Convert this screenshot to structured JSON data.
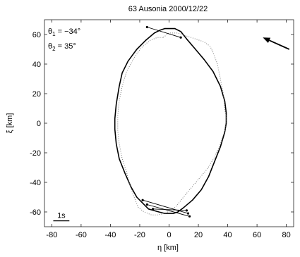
{
  "chart_data": {
    "type": "line",
    "title": "63 Ausonia   2000/12/22",
    "xlabel": "η [km]",
    "ylabel": "ξ [km]",
    "xlim": [
      -85,
      85
    ],
    "ylim": [
      -70,
      70
    ],
    "x_ticks": [
      -80,
      -60,
      -40,
      -20,
      0,
      20,
      40,
      60,
      80
    ],
    "y_ticks": [
      -60,
      -40,
      -20,
      0,
      20,
      40,
      60
    ],
    "grid": false,
    "angles": {
      "theta1": {
        "symbol": "θ",
        "sub": "1",
        "value": " = −34°"
      },
      "theta2": {
        "symbol": "θ",
        "sub": "2",
        "value": " = 35°"
      }
    },
    "scale_bar": {
      "label": "1s",
      "x_start": -79,
      "x_end": -68,
      "y": -66
    },
    "arrow": {
      "from": [
        82,
        50
      ],
      "to": [
        64,
        58
      ]
    },
    "series": [
      {
        "style": "solid",
        "points": [
          [
            0,
            64
          ],
          [
            4,
            64
          ],
          [
            8,
            62
          ],
          [
            12,
            57
          ],
          [
            18,
            50
          ],
          [
            24,
            43
          ],
          [
            30,
            35
          ],
          [
            35,
            25
          ],
          [
            38,
            15
          ],
          [
            39,
            7
          ],
          [
            39,
            0
          ],
          [
            38,
            -6
          ],
          [
            35,
            -16
          ],
          [
            31,
            -26
          ],
          [
            27,
            -36
          ],
          [
            22,
            -45
          ],
          [
            16,
            -52
          ],
          [
            10,
            -57
          ],
          [
            6,
            -60
          ],
          [
            3,
            -61
          ],
          [
            0,
            -61
          ],
          [
            -3,
            -61
          ],
          [
            -7,
            -60
          ],
          [
            -14,
            -58
          ],
          [
            -18,
            -54
          ],
          [
            -22,
            -50
          ],
          [
            -26,
            -43
          ],
          [
            -30,
            -34
          ],
          [
            -34,
            -24
          ],
          [
            -36,
            -14
          ],
          [
            -37,
            -4
          ],
          [
            -37,
            3
          ],
          [
            -36,
            13
          ],
          [
            -34,
            25
          ],
          [
            -32,
            34
          ],
          [
            -28,
            42
          ],
          [
            -22,
            50
          ],
          [
            -16,
            56
          ],
          [
            -10,
            61
          ],
          [
            -6,
            63
          ],
          [
            -3,
            64
          ],
          [
            0,
            64
          ]
        ]
      },
      {
        "style": "dotted",
        "points": [
          [
            -4,
            58
          ],
          [
            0,
            61
          ],
          [
            6,
            61
          ],
          [
            12,
            59
          ],
          [
            18,
            57
          ],
          [
            24,
            55
          ],
          [
            28,
            52
          ],
          [
            30,
            48
          ],
          [
            33,
            40
          ],
          [
            35,
            30
          ],
          [
            37,
            20
          ],
          [
            38,
            10
          ],
          [
            39,
            3
          ],
          [
            38,
            -5
          ],
          [
            35,
            -14
          ],
          [
            31,
            -23
          ],
          [
            26,
            -31
          ],
          [
            20,
            -38
          ],
          [
            14,
            -45
          ],
          [
            9,
            -51
          ],
          [
            5,
            -56
          ],
          [
            1,
            -59
          ],
          [
            -3,
            -61
          ],
          [
            -8,
            -62
          ],
          [
            -12,
            -62
          ],
          [
            -17,
            -60
          ],
          [
            -21,
            -57
          ],
          [
            -23,
            -52
          ],
          [
            -25,
            -47
          ],
          [
            -27,
            -41
          ],
          [
            -29,
            -33
          ],
          [
            -32,
            -24
          ],
          [
            -34,
            -14
          ],
          [
            -35,
            -5
          ],
          [
            -35,
            5
          ],
          [
            -34,
            15
          ],
          [
            -32,
            25
          ],
          [
            -29,
            35
          ],
          [
            -24,
            44
          ],
          [
            -19,
            51
          ],
          [
            -13,
            56
          ],
          [
            -8,
            58
          ],
          [
            -4,
            58
          ]
        ]
      }
    ],
    "chords": [
      {
        "from": [
          -15,
          65
        ],
        "to": [
          8,
          58
        ]
      },
      {
        "from": [
          -18,
          -52
        ],
        "to": [
          13,
          -61
        ]
      },
      {
        "from": [
          -15,
          -55
        ],
        "to": [
          14,
          -63
        ]
      },
      {
        "from": [
          -11,
          -58
        ],
        "to": [
          12,
          -59
        ]
      }
    ]
  }
}
